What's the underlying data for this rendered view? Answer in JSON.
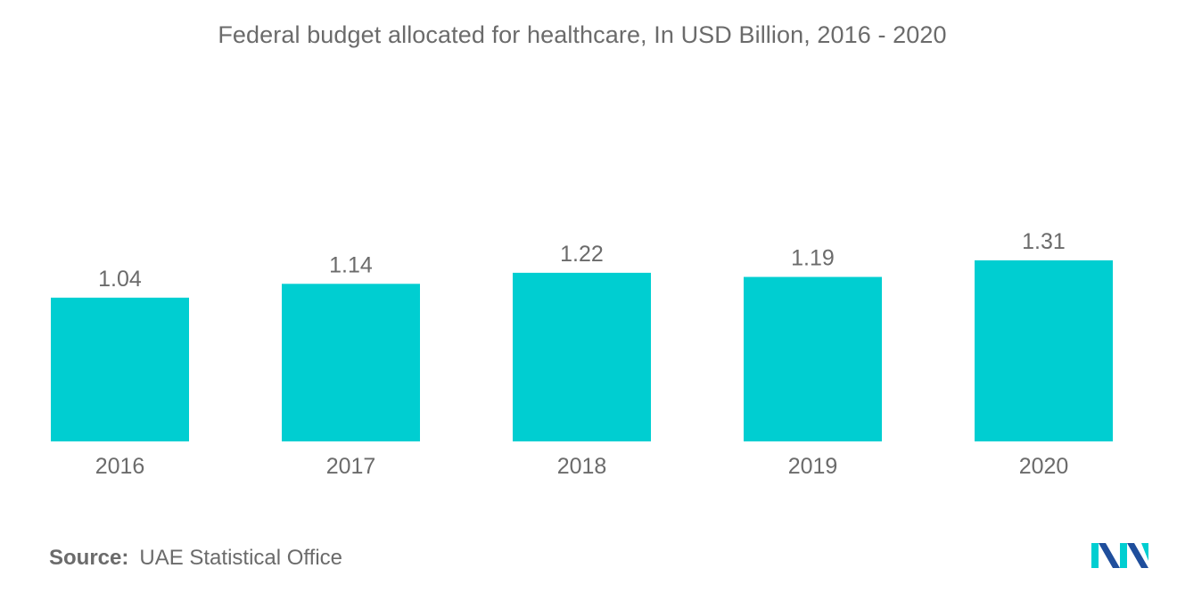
{
  "chart_data": {
    "type": "bar",
    "title": "Federal budget allocated for healthcare, In USD Billion, 2016 - 2020",
    "categories": [
      "2016",
      "2017",
      "2018",
      "2019",
      "2020"
    ],
    "values": [
      1.04,
      1.14,
      1.22,
      1.19,
      1.31
    ],
    "value_labels": [
      "1.04",
      "1.14",
      "1.22",
      "1.19",
      "1.31"
    ],
    "xlabel": "",
    "ylabel": "",
    "ylim": [
      0,
      1.31
    ],
    "grid": false,
    "legend": "none",
    "bar_color": "#00ced1"
  },
  "source": {
    "label": "Source:",
    "text": "UAE Statistical Office"
  },
  "logo": {
    "icon": "mordor-intelligence-logo",
    "colors": [
      "#00ced1",
      "#1f4e9c"
    ]
  },
  "colors": {
    "text": "#6b6b6b",
    "axis": "#ffffff"
  }
}
